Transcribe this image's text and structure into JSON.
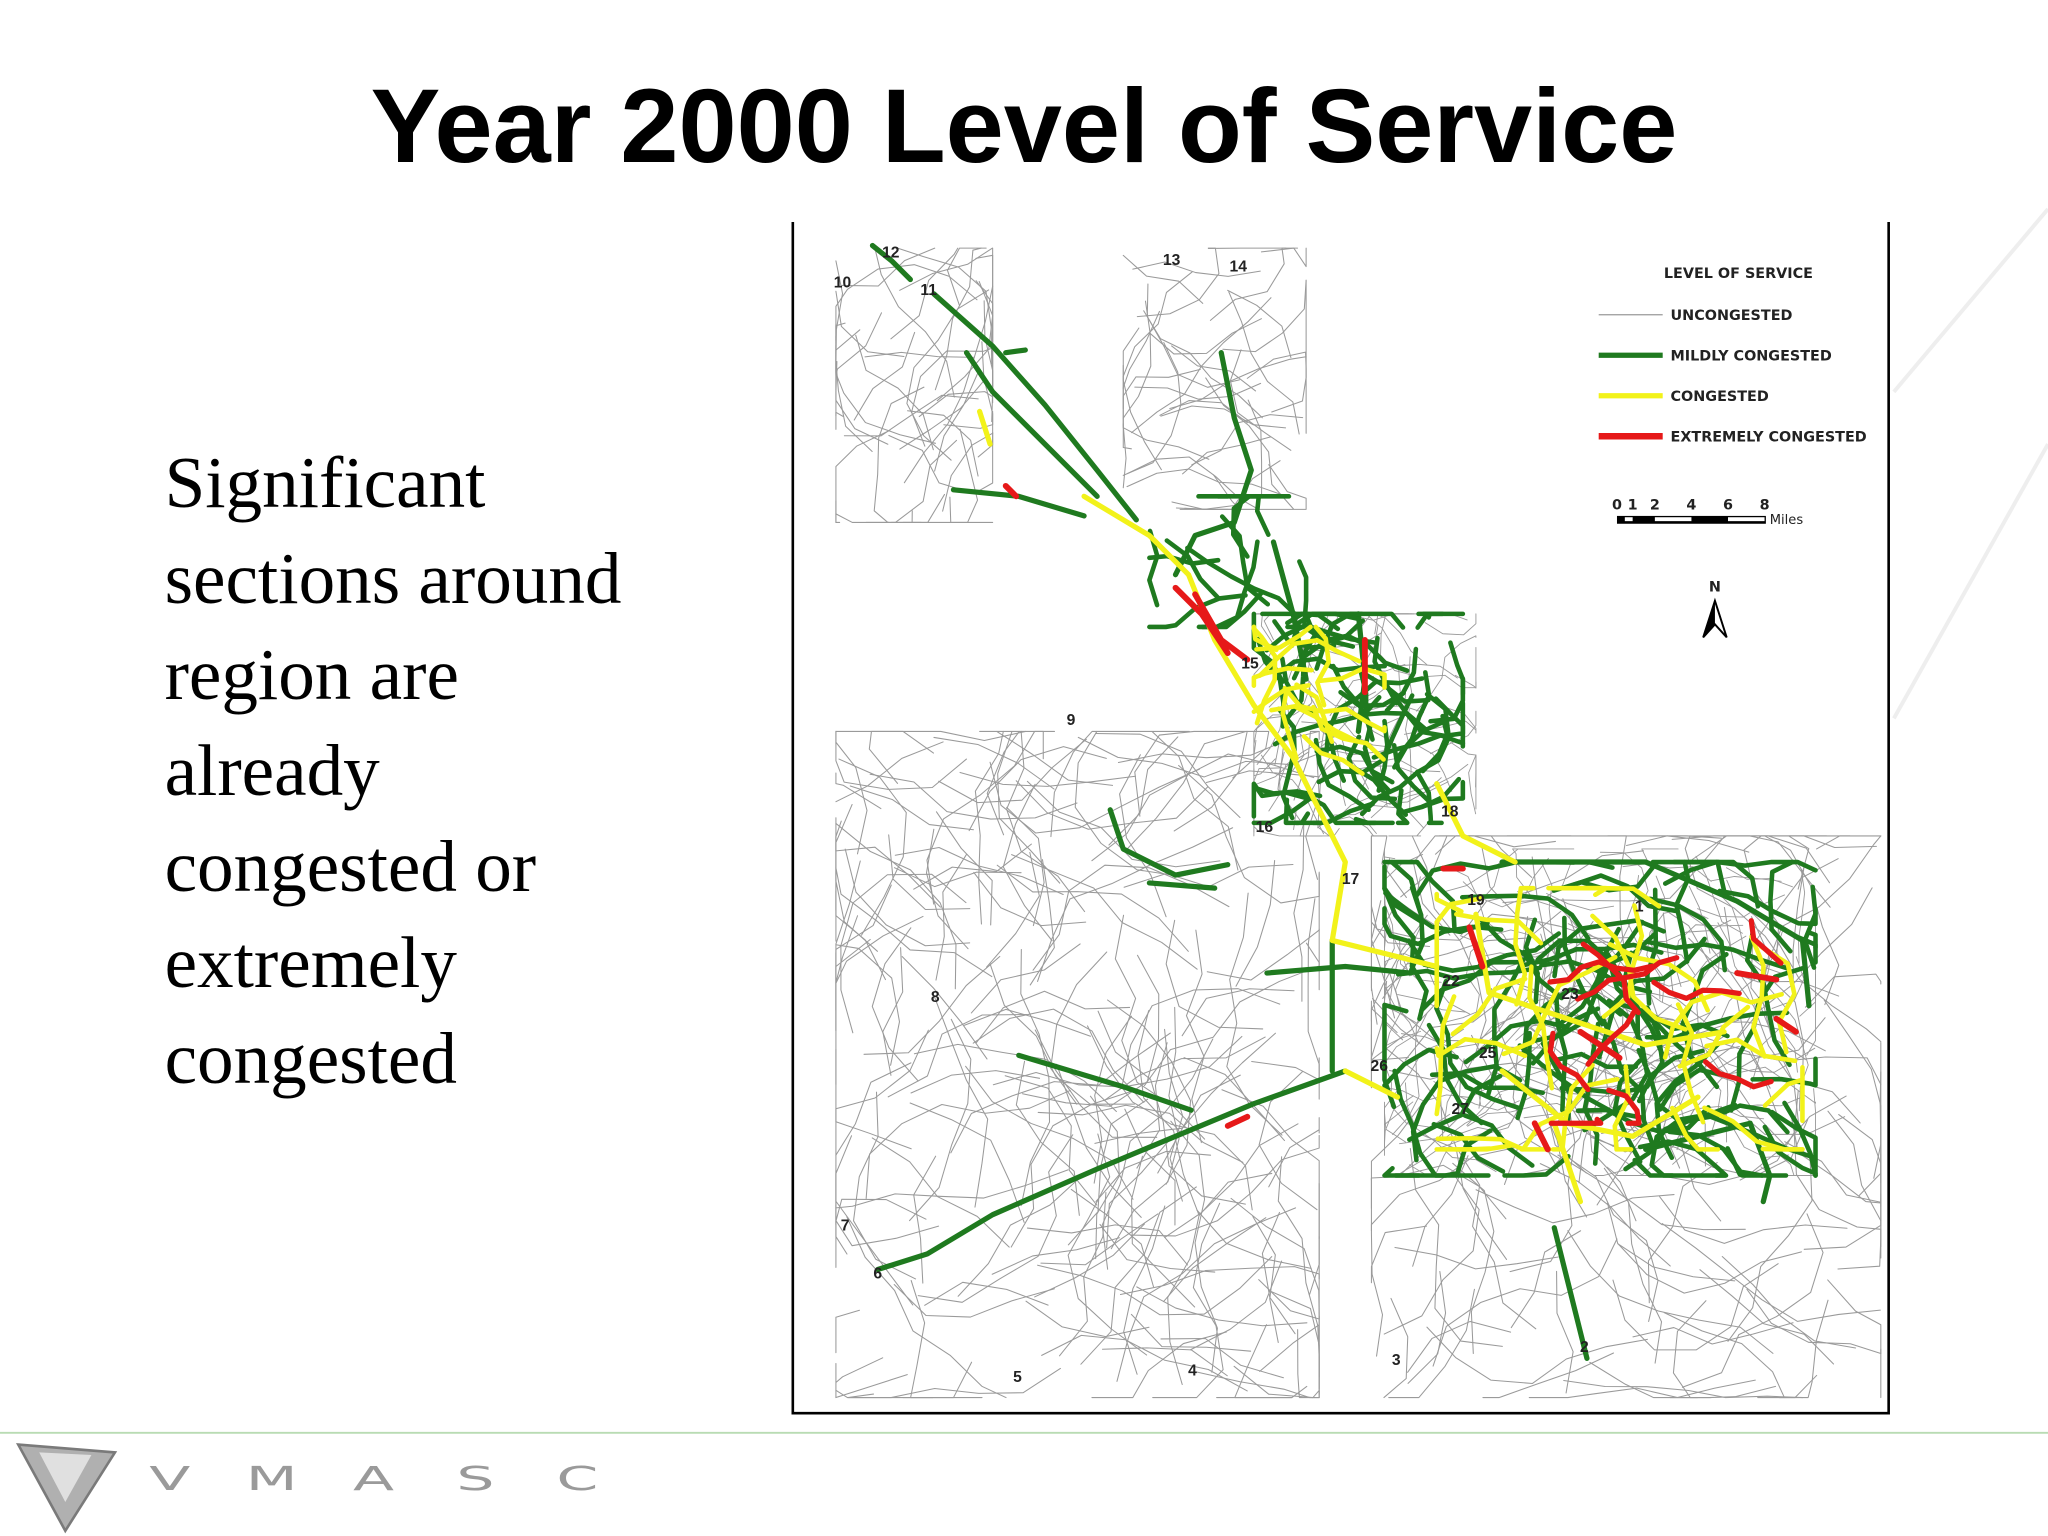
{
  "title": "Year 2000 Level of Service",
  "body": [
    "Significant",
    "sections around",
    "region are",
    "already",
    "congested or",
    "extremely",
    "congested"
  ],
  "map": {
    "legend": {
      "title": "LEVEL OF SERVICE",
      "items": [
        {
          "name": "UNCONGESTED",
          "color": "#9a9a9a"
        },
        {
          "name": "MILDLY CONGESTED",
          "color": "#1f7a1f"
        },
        {
          "name": "CONGESTED",
          "color": "#f2f21a"
        },
        {
          "name": "EXTREMELY CONGESTED",
          "color": "#e61919"
        }
      ]
    },
    "scale": {
      "ticks": [
        "0",
        "1",
        "2",
        "4",
        "6",
        "8"
      ],
      "unit": "Miles"
    },
    "north": "N",
    "labels": [
      "12",
      "10",
      "11",
      "13",
      "14",
      "15",
      "9",
      "16",
      "18",
      "17",
      "19",
      "1",
      "22",
      "23",
      "8",
      "25",
      "26",
      "27",
      "7",
      "6",
      "2",
      "3",
      "4",
      "5"
    ]
  },
  "logo": [
    "V",
    "M",
    "A",
    "S",
    "C"
  ]
}
